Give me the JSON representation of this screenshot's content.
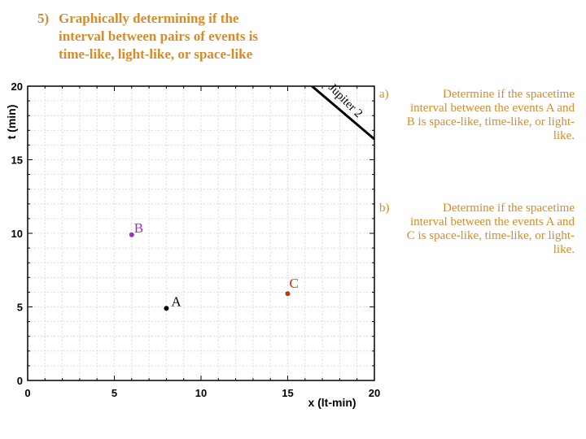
{
  "title": {
    "number": "5)",
    "lines": [
      "Graphically determining if the",
      "interval between pairs of events is",
      "time-like, light-like, or space-like"
    ]
  },
  "questions": [
    {
      "label": "a)",
      "text": "Determine if the spacetime interval between the events A and B is space-like, time-like, or light-like."
    },
    {
      "label": "b)",
      "text": "Determine if the spacetime interval between the events A and C is space-like, time-like, or light-like."
    }
  ],
  "chart_data": {
    "type": "scatter",
    "xlabel": "x (lt-min)",
    "ylabel": "t (min)",
    "xlim": [
      0,
      20
    ],
    "ylim": [
      0,
      20
    ],
    "x_ticks": [
      0,
      5,
      10,
      15,
      20
    ],
    "y_ticks": [
      0,
      5,
      10,
      15,
      20
    ],
    "grid": true,
    "events": [
      {
        "name": "A",
        "x": 8,
        "y": 4.9,
        "color": "#000000"
      },
      {
        "name": "B",
        "x": 6,
        "y": 9.9,
        "color": "#9b30c8"
      },
      {
        "name": "C",
        "x": 15,
        "y": 5.9,
        "color": "#cc3300"
      }
    ],
    "worldline": {
      "name": "Jupiter 2",
      "from": [
        16,
        20.4
      ],
      "to": [
        20,
        16.4
      ],
      "color": "#000000"
    }
  }
}
